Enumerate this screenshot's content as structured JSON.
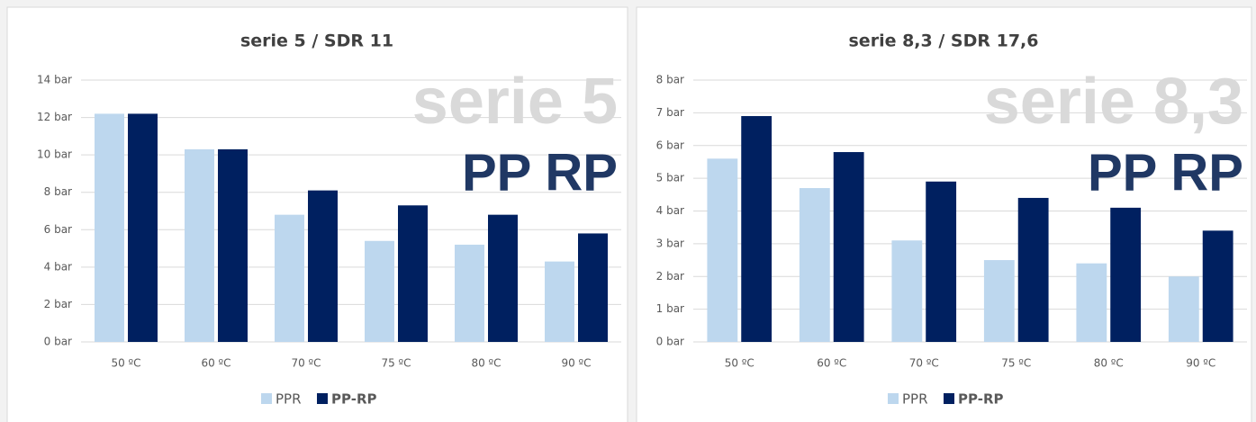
{
  "chart_data": [
    {
      "type": "bar",
      "title": "serie 5 / SDR 11",
      "annotations": [
        "serie 5",
        "PP RP"
      ],
      "categories": [
        "50 ºC",
        "60 ºC",
        "70 ºC",
        "75 ºC",
        "80 ºC",
        "90 ºC"
      ],
      "series": [
        {
          "name": "PPR",
          "color": "#bdd7ee",
          "values": [
            12.2,
            10.3,
            6.8,
            5.4,
            5.2,
            4.3
          ]
        },
        {
          "name": "PP-RP",
          "color": "#002060",
          "values": [
            12.2,
            10.3,
            8.1,
            7.3,
            6.8,
            5.8
          ]
        }
      ],
      "ylim": [
        0,
        14
      ],
      "yticks": [
        {
          "value": 0,
          "label": "0 bar"
        },
        {
          "value": 2,
          "label": "2 bar"
        },
        {
          "value": 4,
          "label": "4 bar"
        },
        {
          "value": 6,
          "label": "6 bar"
        },
        {
          "value": 8,
          "label": "8 bar"
        },
        {
          "value": 10,
          "label": "10 bar"
        },
        {
          "value": 12,
          "label": "12 bar"
        },
        {
          "value": 14,
          "label": "14 bar"
        }
      ],
      "grid": true,
      "legend": "bottom"
    },
    {
      "type": "bar",
      "title": "serie 8,3 / SDR 17,6",
      "annotations": [
        "serie 8,3",
        "PP RP"
      ],
      "categories": [
        "50 ºC",
        "60 ºC",
        "70 ºC",
        "75 ºC",
        "80 ºC",
        "90 ºC"
      ],
      "series": [
        {
          "name": "PPR",
          "color": "#bdd7ee",
          "values": [
            5.6,
            4.7,
            3.1,
            2.5,
            2.4,
            2.0
          ]
        },
        {
          "name": "PP-RP",
          "color": "#002060",
          "values": [
            6.9,
            5.8,
            4.9,
            4.4,
            4.1,
            3.4
          ]
        }
      ],
      "ylim": [
        0,
        8
      ],
      "yticks": [
        {
          "value": 0,
          "label": "0 bar"
        },
        {
          "value": 1,
          "label": "1 bar"
        },
        {
          "value": 2,
          "label": "2 bar"
        },
        {
          "value": 3,
          "label": "3 bar"
        },
        {
          "value": 4,
          "label": "4 bar"
        },
        {
          "value": 5,
          "label": "5 bar"
        },
        {
          "value": 6,
          "label": "6 bar"
        },
        {
          "value": 7,
          "label": "7 bar"
        },
        {
          "value": 8,
          "label": "8 bar"
        }
      ],
      "grid": true,
      "legend": "bottom"
    }
  ]
}
